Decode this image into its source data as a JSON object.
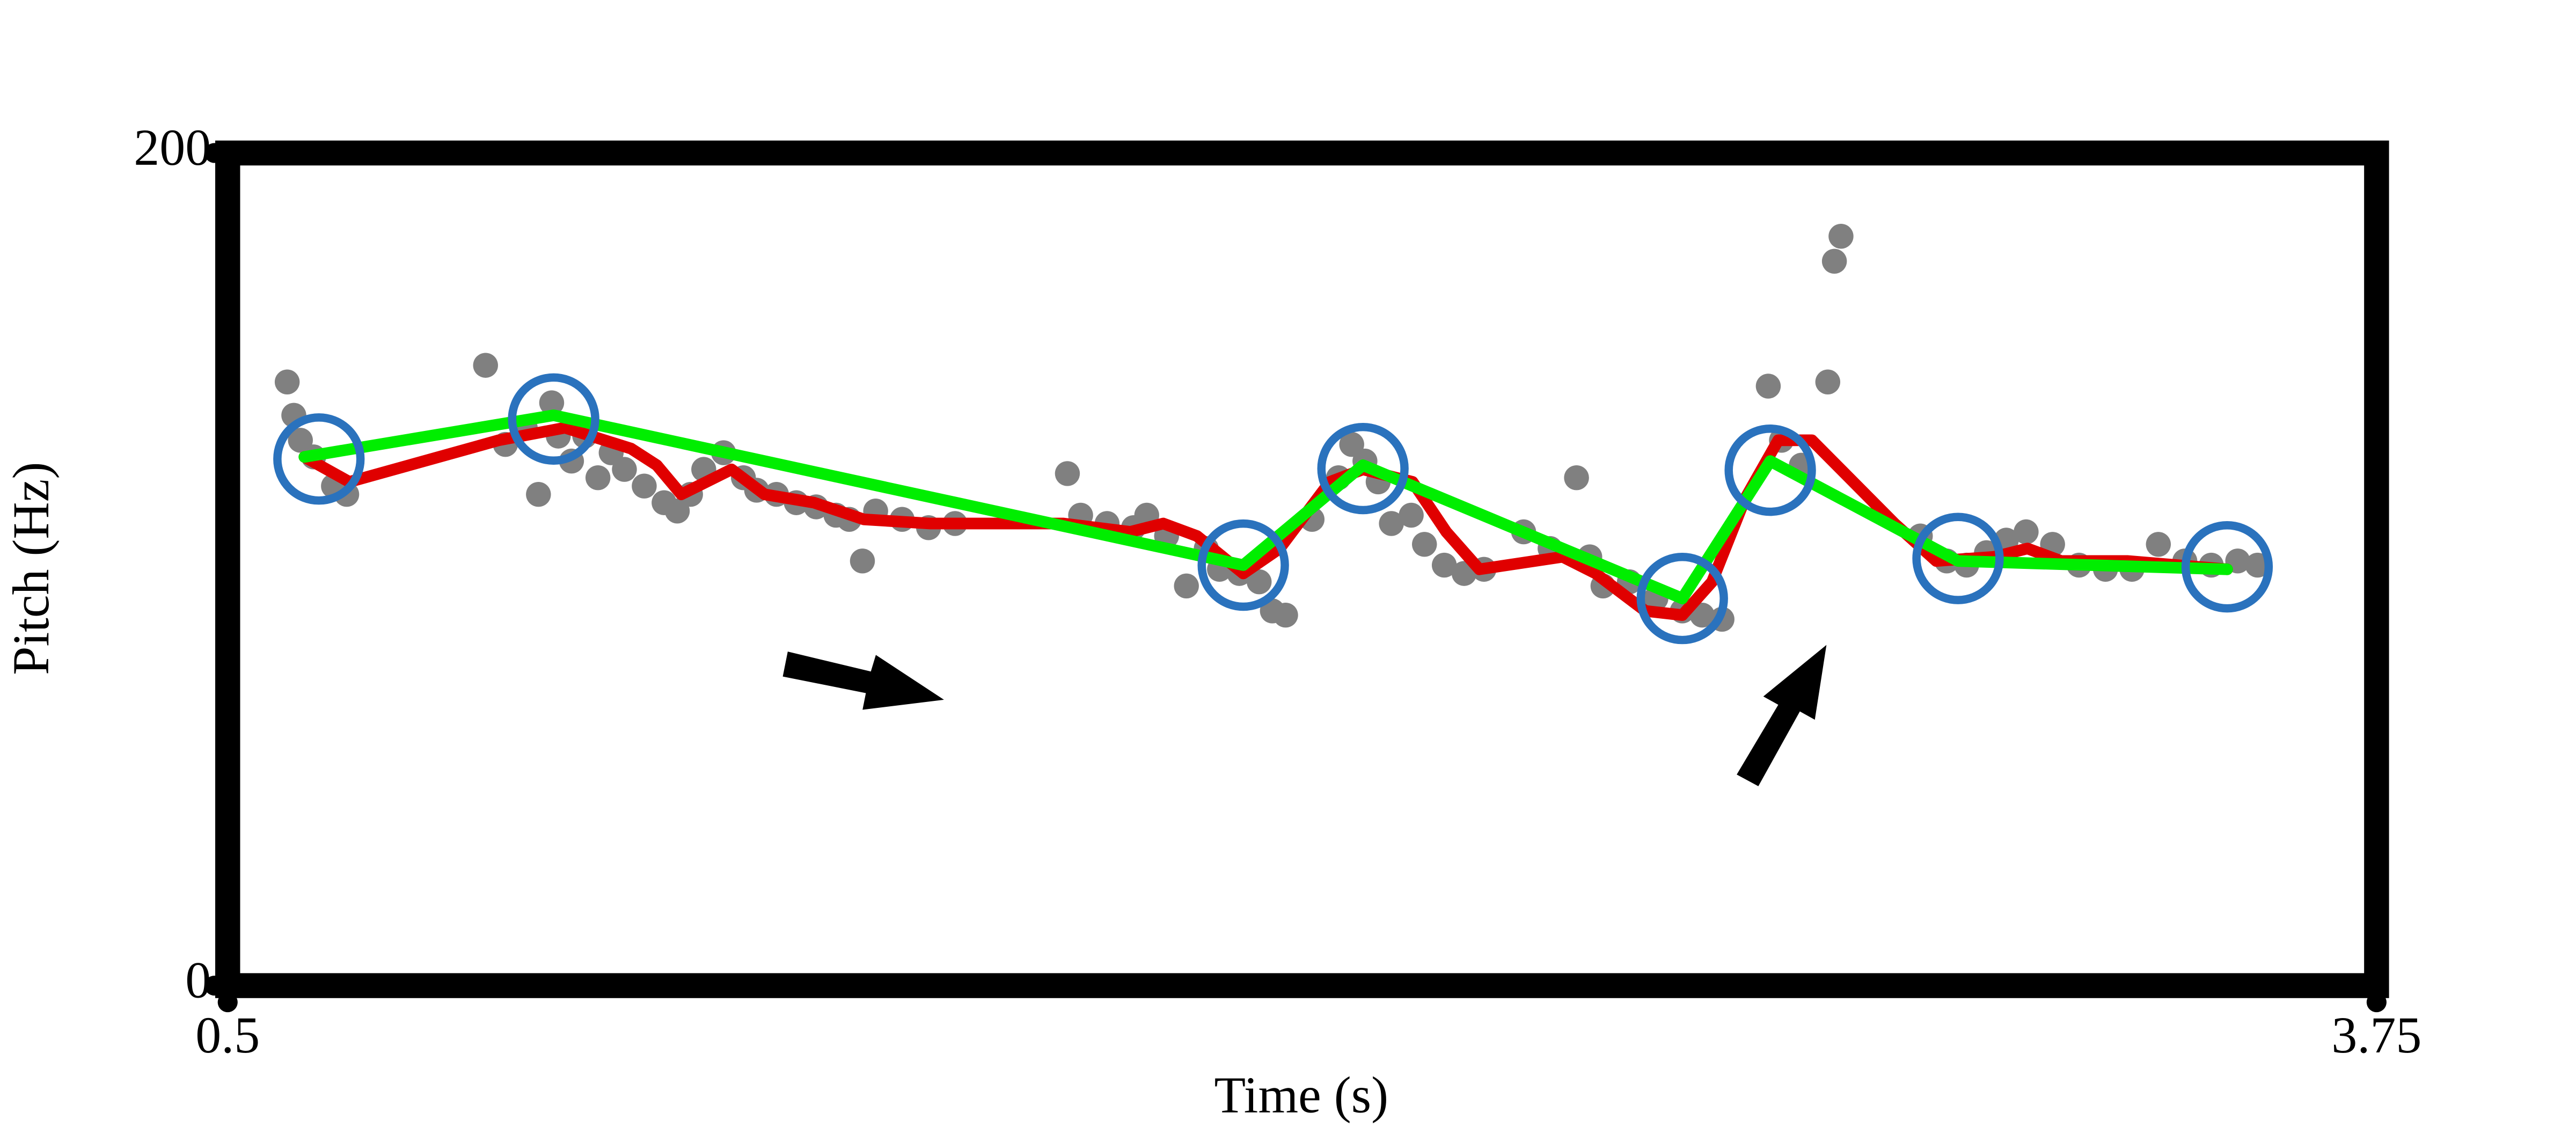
{
  "chart_data": {
    "type": "scatter",
    "x_label": "Time (s)",
    "y_label": "Pitch (Hz)",
    "xlim": [
      0.5,
      3.75
    ],
    "ylim": [
      0,
      200
    ],
    "xticks": [
      0.5,
      3.75
    ],
    "yticks": [
      0,
      200
    ],
    "series": [
      {
        "type": "scatter",
        "color": "#808080",
        "x": [
          0.59,
          0.6,
          0.61,
          0.63,
          0.66,
          0.68,
          0.89,
          0.92,
          0.95,
          0.97,
          0.99,
          1.0,
          1.02,
          1.04,
          1.06,
          1.08,
          1.1,
          1.13,
          1.16,
          1.18,
          1.2,
          1.22,
          1.25,
          1.28,
          1.3,
          1.33,
          1.36,
          1.39,
          1.42,
          1.44,
          1.46,
          1.48,
          1.52,
          1.56,
          1.6,
          1.77,
          1.79,
          1.83,
          1.87,
          1.89,
          1.92,
          1.95,
          1.98,
          2.0,
          2.03,
          2.06,
          2.08,
          2.1,
          2.14,
          2.18,
          2.2,
          2.22,
          2.24,
          2.26,
          2.29,
          2.31,
          2.34,
          2.37,
          2.4,
          2.46,
          2.5,
          2.54,
          2.56,
          2.58,
          2.62,
          2.66,
          2.7,
          2.73,
          2.76,
          2.83,
          2.85,
          2.88,
          2.92,
          2.93,
          2.94,
          3.06,
          3.1,
          3.13,
          3.16,
          3.19,
          3.22,
          3.26,
          3.3,
          3.34,
          3.38,
          3.42,
          3.46,
          3.5,
          3.54,
          3.57
        ],
        "values": [
          145,
          137,
          131,
          127,
          120,
          118,
          149,
          130,
          134,
          118,
          140,
          132,
          126,
          132,
          122,
          128,
          124,
          120,
          116,
          114,
          118,
          124,
          128,
          122,
          119,
          118,
          116,
          115,
          113,
          112,
          102,
          114,
          112,
          110,
          111,
          123,
          113,
          111,
          110,
          113,
          108,
          96,
          105,
          100,
          99,
          97,
          90,
          89,
          112,
          122,
          130,
          126,
          121,
          111,
          113,
          106,
          101,
          99,
          100,
          109,
          105,
          122,
          103,
          96,
          97,
          93,
          90,
          89,
          88,
          144,
          131,
          125,
          145,
          174,
          180,
          108,
          102,
          101,
          104,
          107,
          109,
          106,
          101,
          100,
          100,
          106,
          102,
          101,
          102,
          101
        ]
      },
      {
        "type": "line",
        "color": "#e00000",
        "x": [
          0.616,
          0.684,
          0.91,
          1.01,
          1.11,
          1.149,
          1.186,
          1.224,
          1.262,
          1.312,
          1.387,
          1.462,
          1.563,
          1.764,
          1.865,
          1.915,
          1.966,
          2.036,
          2.091,
          2.167,
          2.217,
          2.292,
          2.343,
          2.393,
          2.519,
          2.569,
          2.644,
          2.7,
          2.745,
          2.795,
          2.845,
          2.896,
          2.946,
          3.021,
          3.084,
          3.172,
          3.222,
          3.273,
          3.373,
          3.524
        ],
        "values": [
          127,
          121,
          131,
          134,
          129,
          125,
          118,
          121,
          124,
          118,
          116,
          112,
          111,
          111,
          109,
          111,
          108,
          99,
          105,
          121,
          124,
          121,
          109,
          100,
          103,
          99,
          90,
          89,
          97,
          117,
          131,
          131,
          123,
          111,
          102,
          103,
          105,
          102,
          102,
          100
        ]
      },
      {
        "type": "line",
        "color": "#00ee00",
        "x": [
          0.616,
          0.993,
          2.036,
          2.217,
          2.7,
          2.833,
          3.117,
          3.524
        ],
        "values": [
          127,
          137,
          101,
          125,
          93,
          126,
          102,
          100
        ]
      },
      {
        "type": "circles",
        "color": "#2a72bd",
        "x": [
          0.638,
          0.993,
          2.036,
          2.217,
          2.7,
          2.833,
          3.117,
          3.524
        ],
        "values": [
          126.5,
          136.1,
          101.0,
          124.2,
          93.0,
          123.8,
          102.6,
          100.6
        ]
      }
    ]
  }
}
